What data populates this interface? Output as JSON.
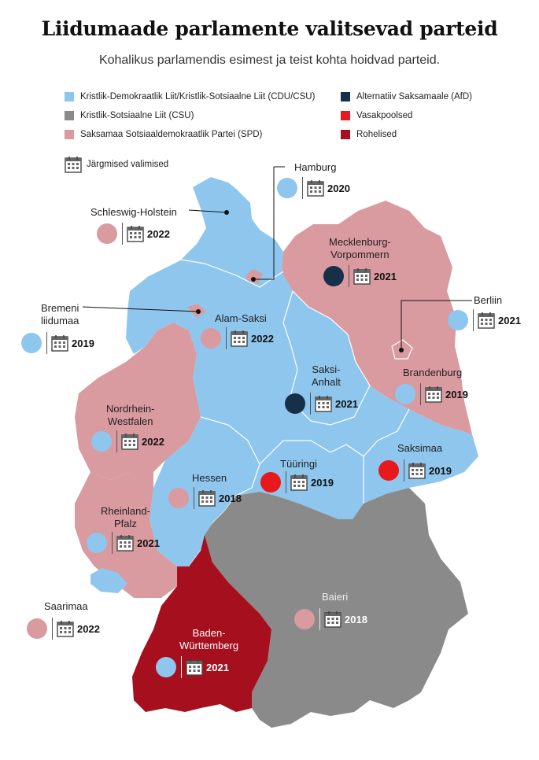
{
  "header": {
    "title": "Liidumaade parlamente valitsevad parteid",
    "subtitle": "Kohalikus parlamendis esimest ja teist kohta hoidvad parteid."
  },
  "legend": {
    "items": [
      {
        "label": "Kristlik-Demokraatlik Liit/Kristlik-Sotsiaalne Liit (CDU/CSU)",
        "color": "#8ec6ee"
      },
      {
        "label": "Kristlik-Sotsiaalne Liit (CSU)",
        "color": "#8a8a8a"
      },
      {
        "label": "Saksamaa Sotsiaaldemokraatlik Partei (SPD)",
        "color": "#d99aa0"
      },
      {
        "label": "Alternatiiv Saksamaale (AfD)",
        "color": "#16304a"
      },
      {
        "label": "Vasakpoolsed",
        "color": "#e8191c"
      },
      {
        "label": "Rohelised",
        "color": "#a50f1e"
      }
    ],
    "next_elections_label": "Järgmised valimised"
  },
  "colors": {
    "cdu": "#8ec6ee",
    "csu": "#8a8a8a",
    "spd": "#d99aa0",
    "afd": "#16304a",
    "left": "#e8191c",
    "greens": "#a50f1e"
  },
  "states": {
    "hamburg": {
      "name": "Hamburg",
      "year": "2020"
    },
    "schleswig_holstein": {
      "name": "Schleswig-Holstein",
      "year": "2022"
    },
    "mecklenburg": {
      "name": "Mecklenburg-\nVorpommern",
      "year": "2021"
    },
    "bremen": {
      "name": "Bremeni\nliidumaa",
      "year": "2019"
    },
    "berlin": {
      "name": "Berliin",
      "year": "2021"
    },
    "niedersachsen": {
      "name": "Alam-Saksi",
      "year": "2022"
    },
    "sachsen_anhalt": {
      "name": "Saksi-\nAnhalt",
      "year": "2021"
    },
    "brandenburg": {
      "name": "Brandenburg",
      "year": "2019"
    },
    "nrw": {
      "name": "Nordrhein-\nWestfalen",
      "year": "2022"
    },
    "sachsen": {
      "name": "Saksimaa",
      "year": "2019"
    },
    "thueringen": {
      "name": "Tüüringi",
      "year": "2019"
    },
    "hessen": {
      "name": "Hessen",
      "year": "2018"
    },
    "rheinland_pfalz": {
      "name": "Rheinland-\nPfalz",
      "year": "2021"
    },
    "saarland": {
      "name": "Saarimaa",
      "year": "2022"
    },
    "bayern": {
      "name": "Baieri",
      "year": "2018"
    },
    "bw": {
      "name": "Baden-\nWürttemberg",
      "year": "2021"
    }
  }
}
